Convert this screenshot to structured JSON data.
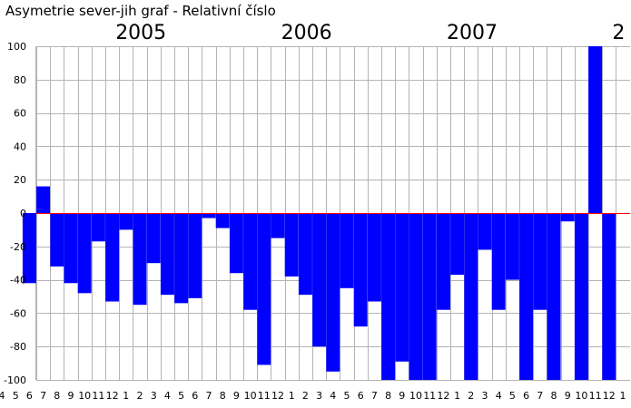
{
  "colors": {
    "bar": "#0000ff",
    "grid": "#b4b4b4",
    "zero_line": "#ff0000",
    "axis": "#000000",
    "background": "#ffffff"
  },
  "chart_data": {
    "type": "bar",
    "title": "Asymetrie sever-jih  graf  - Relativní číslo",
    "xlabel": "",
    "ylabel": "",
    "ylim": [
      -100,
      100
    ],
    "yticks": [
      100,
      80,
      60,
      40,
      20,
      0,
      -20,
      -40,
      -60,
      -80,
      -100
    ],
    "grid": true,
    "categories": [
      "4",
      "5",
      "6",
      "7",
      "8",
      "9",
      "10",
      "11",
      "12",
      "1",
      "2",
      "3",
      "4",
      "5",
      "6",
      "7",
      "8",
      "9",
      "10",
      "11",
      "12",
      "1",
      "2",
      "3",
      "4",
      "5",
      "6",
      "7",
      "8",
      "9",
      "10",
      "11",
      "12",
      "1",
      "2",
      "3",
      "4",
      "5",
      "6",
      "7",
      "8",
      "9",
      "10",
      "11",
      "12",
      "1"
    ],
    "values": [
      null,
      null,
      -42,
      16,
      -32,
      -42,
      -48,
      -17,
      -53,
      -10,
      -55,
      -30,
      -49,
      -54,
      -51,
      -3,
      -9,
      -36,
      -58,
      -91,
      -15,
      -38,
      -49,
      -80,
      -95,
      -45,
      -68,
      -53,
      -100,
      -89,
      -100,
      -100,
      -58,
      -37,
      -100,
      -22,
      -58,
      -40,
      -100,
      -58,
      -100,
      -5,
      -100,
      100,
      -100,
      null
    ],
    "years": [
      {
        "label": "2005",
        "category_index": 9
      },
      {
        "label": "2006",
        "category_index": 21
      },
      {
        "label": "2007",
        "category_index": 33
      },
      {
        "label": "2",
        "category_index": 45
      }
    ]
  }
}
